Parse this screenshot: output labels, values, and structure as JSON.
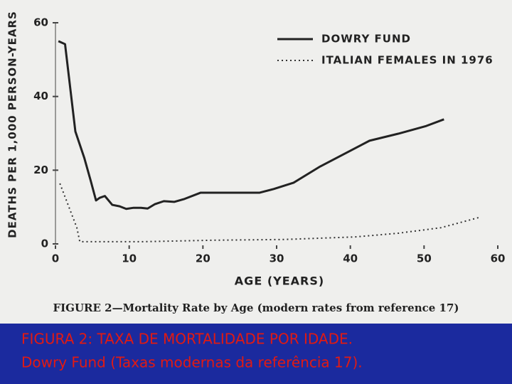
{
  "chart_data": {
    "type": "line",
    "xlabel": "AGE (YEARS)",
    "ylabel": "DEATHS PER 1,000 PERSON-YEARS",
    "caption": "FIGURE 2—Mortality Rate by Age (modern rates from reference 17)",
    "xlim": [
      0,
      60
    ],
    "xticks": [
      0,
      10,
      20,
      30,
      40,
      50,
      60
    ],
    "ylim": [
      0,
      60
    ],
    "yticks": [
      0,
      20,
      40,
      60
    ],
    "legend": "upper right",
    "series": [
      {
        "name": "DOWRY FUND",
        "color": "#222222",
        "style": "solid",
        "x": [
          0.4,
          1.3,
          2.7,
          3.9,
          4.8,
          5.5,
          6,
          6.7,
          7.7,
          8.7,
          9.6,
          10.6,
          11.6,
          12.5,
          13.5,
          14.7,
          16.1,
          17.5,
          19.7,
          22.4,
          27.7,
          29.6,
          32.3,
          35.9,
          42.6,
          46.5,
          50.3,
          52.7
        ],
        "values": [
          55,
          54.2,
          30.5,
          23.4,
          17,
          11.8,
          12.5,
          13,
          10.6,
          10.2,
          9.5,
          9.8,
          9.8,
          9.6,
          10.8,
          11.6,
          11.4,
          12.2,
          13.9,
          13.9,
          13.9,
          14.9,
          16.6,
          21,
          28,
          29.9,
          32,
          33.8
        ]
      },
      {
        "name": "ITALIAN FEMALES IN 1976",
        "color": "#333333",
        "style": "dotted",
        "x": [
          0.6,
          2.9,
          3.3,
          11.8,
          21.4,
          31,
          40.7,
          46.5,
          52.3,
          57.7
        ],
        "values": [
          16.4,
          4.4,
          0.6,
          0.6,
          1,
          1.2,
          1.9,
          2.9,
          4.4,
          7.3
        ]
      }
    ]
  },
  "banner": {
    "lines": [
      "FIGURA 2: TAXA DE MORTALIDADE POR IDADE.",
      "Dowry Fund  (Taxas modernas da referência 17)."
    ]
  }
}
